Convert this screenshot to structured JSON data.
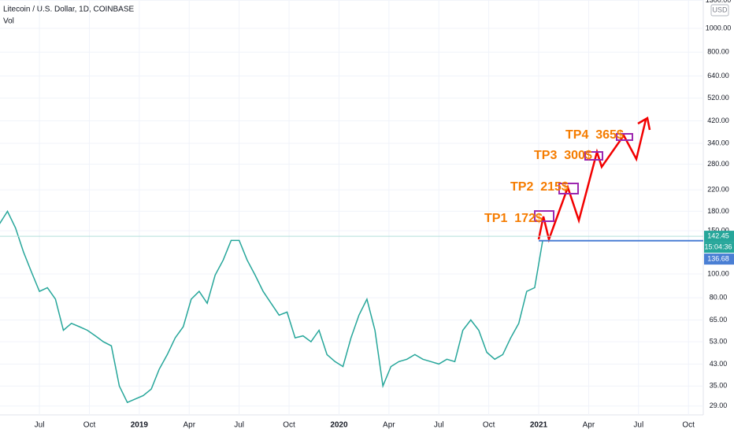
{
  "chart_data": {
    "type": "line",
    "title": "Litecoin / U.S. Dollar, 1D, COINBASE",
    "subtitle": "Vol",
    "currency": "USD",
    "log_scale": true,
    "grid": true,
    "xlim": [
      3.63,
      45.89
    ],
    "ylim": [
      26.7,
      1304
    ],
    "xticks": [
      {
        "value": 6,
        "label": "Jul"
      },
      {
        "value": 9,
        "label": "Oct"
      },
      {
        "value": 12,
        "label": "2019"
      },
      {
        "value": 15,
        "label": "Apr"
      },
      {
        "value": 18,
        "label": "Jul"
      },
      {
        "value": 21,
        "label": "Oct"
      },
      {
        "value": 24,
        "label": "2020"
      },
      {
        "value": 27,
        "label": "Apr"
      },
      {
        "value": 30,
        "label": "Jul"
      },
      {
        "value": 33,
        "label": "Oct"
      },
      {
        "value": 36,
        "label": "2021"
      },
      {
        "value": 39,
        "label": "Apr"
      },
      {
        "value": 42,
        "label": "Jul"
      },
      {
        "value": 45,
        "label": "Oct"
      }
    ],
    "yticks": [
      {
        "value": 1300,
        "label": "1300.00"
      },
      {
        "value": 1000,
        "label": "1000.00"
      },
      {
        "value": 800,
        "label": "800.00"
      },
      {
        "value": 640,
        "label": "640.00"
      },
      {
        "value": 520,
        "label": "520.00"
      },
      {
        "value": 420,
        "label": "420.00"
      },
      {
        "value": 340,
        "label": "340.00"
      },
      {
        "value": 280,
        "label": "280.00"
      },
      {
        "value": 220,
        "label": "220.00"
      },
      {
        "value": 180,
        "label": "180.00"
      },
      {
        "value": 150,
        "label": "150.00"
      },
      {
        "value": 100,
        "label": "100.00"
      },
      {
        "value": 80,
        "label": "80.00"
      },
      {
        "value": 65,
        "label": "65.00"
      },
      {
        "value": 53,
        "label": "53.00"
      },
      {
        "value": 43,
        "label": "43.00"
      },
      {
        "value": 35,
        "label": "35.00"
      },
      {
        "value": 29,
        "label": "29.00"
      }
    ],
    "x": [
      3.6,
      4.08,
      4.56,
      5.04,
      5.52,
      6,
      6.48,
      6.96,
      7.44,
      7.92,
      8.4,
      8.88,
      9.36,
      9.84,
      10.32,
      10.8,
      11.28,
      11.76,
      12.24,
      12.72,
      13.2,
      13.68,
      14.16,
      14.64,
      15.12,
      15.6,
      16.08,
      16.56,
      17.04,
      17.52,
      18,
      18.48,
      18.96,
      19.44,
      19.92,
      20.4,
      20.88,
      21.36,
      21.84,
      22.32,
      22.8,
      23.28,
      23.76,
      24.24,
      24.72,
      25.2,
      25.68,
      26.16,
      26.64,
      27.12,
      27.6,
      28.08,
      28.56,
      29.04,
      29.52,
      30,
      30.48,
      30.96,
      31.44,
      31.92,
      32.4,
      32.88,
      33.36,
      33.84,
      34.32,
      34.8,
      35.28,
      35.76,
      36.24
    ],
    "series": [
      {
        "color": "#26a69a",
        "values": [
          160,
          180,
          154,
          123,
          102,
          85,
          88,
          79,
          59,
          63,
          61,
          59,
          56,
          53,
          51,
          35,
          30,
          31,
          32,
          34,
          41,
          47,
          55,
          61,
          79,
          85,
          76,
          99,
          114,
          137,
          137,
          114,
          99,
          85,
          76,
          68,
          70,
          55,
          56,
          53,
          59,
          47,
          44,
          42,
          55,
          68,
          79,
          59,
          35,
          42,
          44,
          45,
          47,
          45,
          44,
          43,
          45,
          44,
          59,
          65,
          59,
          48,
          45,
          47,
          55,
          63,
          85,
          88,
          137
        ]
      }
    ],
    "last_price": 142.45,
    "countdown": "15:04:36",
    "line_price": 136.68,
    "annotations": [
      "TP1  172$",
      "TP2  215$",
      "TP3  300$",
      "TP4  365$"
    ]
  }
}
